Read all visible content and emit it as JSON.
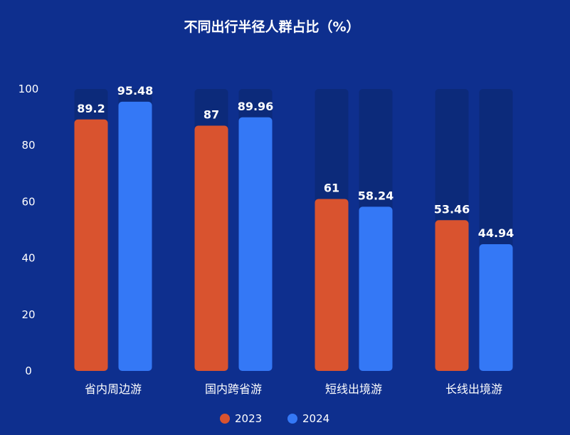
{
  "chart_data": {
    "type": "bar",
    "title": "不同出行半径人群占比（%）",
    "xlabel": "",
    "ylabel": "",
    "categories": [
      "省内周边游",
      "国内跨省游",
      "短线出境游",
      "长线出境游"
    ],
    "series": [
      {
        "name": "2023",
        "values": [
          89.2,
          87,
          61,
          53.46
        ],
        "color": "#d9532f"
      },
      {
        "name": "2024",
        "values": [
          95.48,
          89.96,
          58.24,
          44.94
        ],
        "color": "#3478f6"
      }
    ],
    "value_labels": [
      [
        "89.2",
        "87",
        "61",
        "53.46"
      ],
      [
        "95.48",
        "89.96",
        "58.24",
        "44.94"
      ]
    ],
    "ylim": [
      0,
      100
    ],
    "yticks": [
      "0",
      "20",
      "40",
      "60",
      "80",
      "100"
    ],
    "grid": false,
    "legend": "bottom-center",
    "background_color": "#0e2f8e",
    "track_color": "#0c2a7a"
  }
}
